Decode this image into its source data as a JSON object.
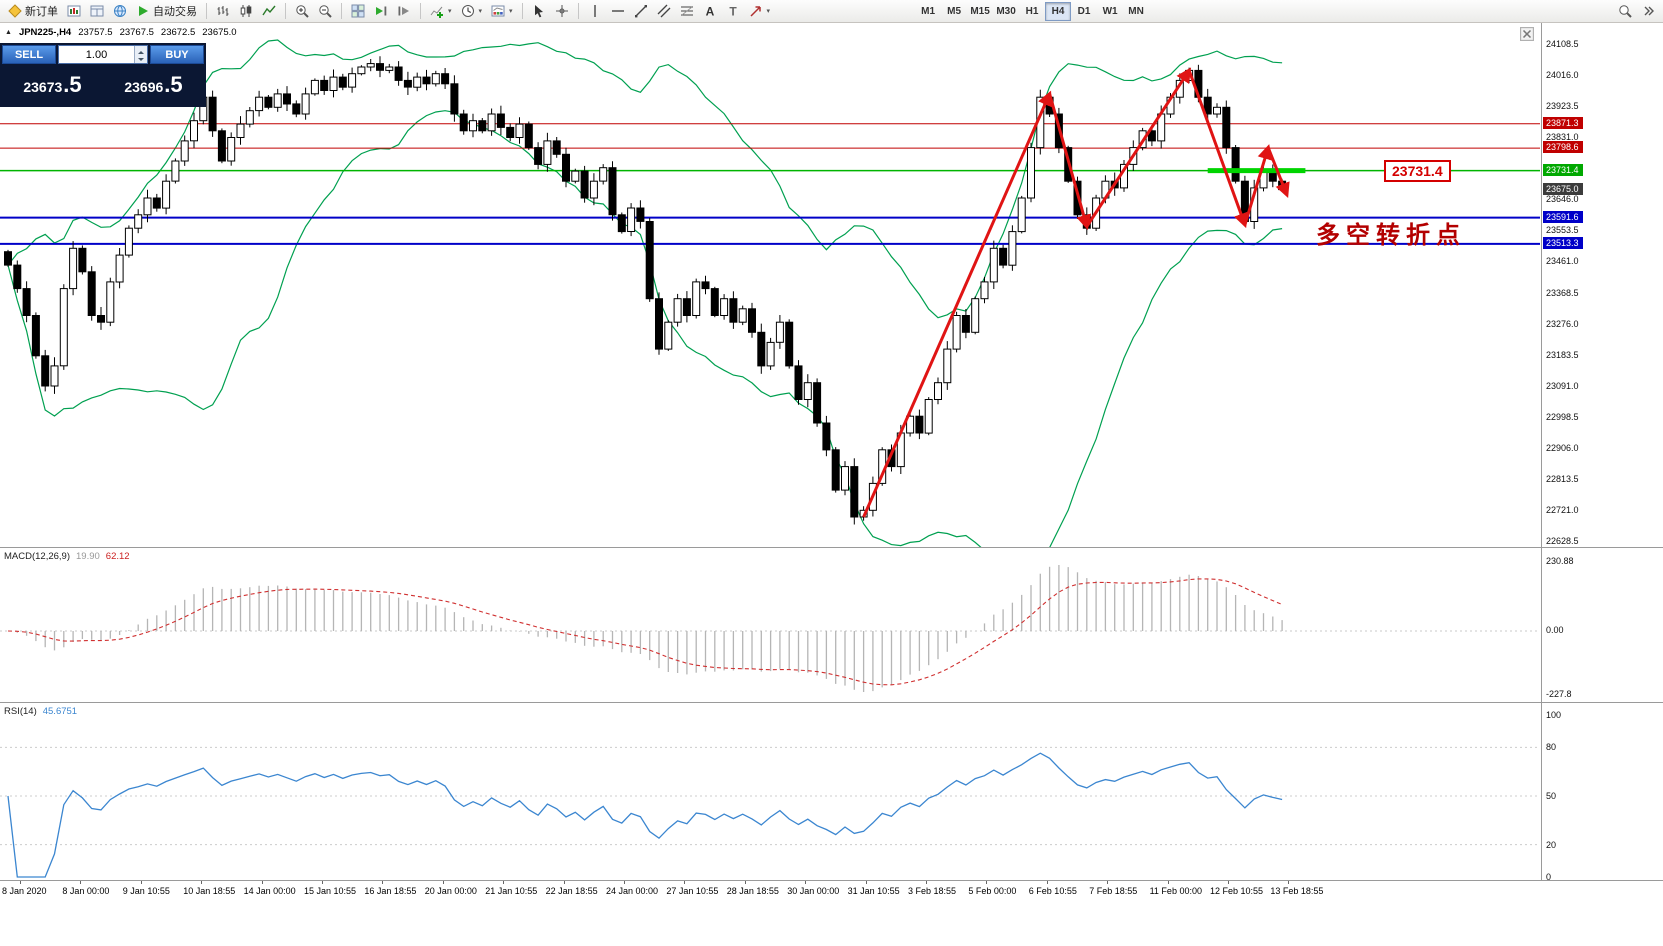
{
  "toolbar": {
    "new_order_label": "新订单",
    "auto_trading_label": "自动交易",
    "timeframes": [
      "M1",
      "M5",
      "M15",
      "M30",
      "H1",
      "H4",
      "D1",
      "W1",
      "MN"
    ],
    "active_timeframe": "H4"
  },
  "chart_header": {
    "symbol_period": "JPN225-,H4",
    "open": "23757.5",
    "high": "23767.5",
    "low": "23672.5",
    "close": "23675.0"
  },
  "trade_panel": {
    "sell_label": "SELL",
    "buy_label": "BUY",
    "volume": "1.00",
    "sell_price_main": "23673",
    "sell_price_frac": ".5",
    "buy_price_main": "23696",
    "buy_price_frac": ".5"
  },
  "price_axis": {
    "regular": [
      "24108.5",
      "24016.0",
      "23923.5",
      "23831.0",
      "23646.0",
      "23553.5",
      "23461.0",
      "23368.5",
      "23276.0",
      "23183.5",
      "23091.0",
      "22998.5",
      "22906.0",
      "22813.5",
      "22721.0",
      "22628.5"
    ],
    "special": [
      {
        "text": "23871.3",
        "price": 23871.3,
        "bg": "#c00000"
      },
      {
        "text": "23798.6",
        "price": 23798.6,
        "bg": "#c00000"
      },
      {
        "text": "23731.4",
        "price": 23731.4,
        "bg": "#00a800"
      },
      {
        "text": "23675.0",
        "price": 23675.0,
        "bg": "#3c3c3c"
      },
      {
        "text": "23591.6",
        "price": 23591.6,
        "bg": "#0000c8"
      },
      {
        "text": "23513.3",
        "price": 23513.3,
        "bg": "#0000c8"
      }
    ]
  },
  "annotations": {
    "price_tag": "23731.4",
    "turning_point_text": "多空转折点",
    "accent_red": "#d40000",
    "accent_green": "#00d400",
    "line_blue": "#0000c8"
  },
  "indicators": {
    "macd": {
      "label": "MACD(12,26,9)",
      "main_value": "19.90",
      "signal_value": "62.12",
      "axis": [
        "230.88",
        "0.00",
        "-227.8"
      ]
    },
    "rsi": {
      "label": "RSI(14)",
      "value": "45.6751",
      "axis": [
        "100",
        "80",
        "50",
        "20",
        "0"
      ]
    }
  },
  "time_axis": [
    "8 Jan 2020",
    "8 Jan 00:00",
    "9 Jan 10:55",
    "10 Jan 18:55",
    "14 Jan 00:00",
    "15 Jan 10:55",
    "16 Jan 18:55",
    "20 Jan 00:00",
    "21 Jan 10:55",
    "22 Jan 18:55",
    "24 Jan 00:00",
    "27 Jan 10:55",
    "28 Jan 18:55",
    "30 Jan 00:00",
    "31 Jan 10:55",
    "3 Feb 18:55",
    "5 Feb 00:00",
    "6 Feb 10:55",
    "7 Feb 18:55",
    "11 Feb 00:00",
    "12 Feb 10:55",
    "13 Feb 18:55"
  ],
  "icons": {
    "new-order-icon": "gold-diamond",
    "market-watch-icon": "mini-bar-chart",
    "data-window-icon": "window-grid",
    "navigator-icon": "globe",
    "auto-trading-icon": "green-play-triangle",
    "bars-chart-icon": "ohlc-bars",
    "candlestick-chart-icon": "candles",
    "line-chart-icon": "zigzag-line",
    "zoom-in-icon": "magnifier-plus",
    "zoom-out-icon": "magnifier-minus",
    "tile-windows-icon": "window-tiles",
    "auto-scroll-icon": "play-to-end",
    "chart-shift-icon": "shift-right",
    "indicators-icon": "green-plus-chart",
    "periods-icon": "clock",
    "templates-icon": "chart-palette",
    "cursor-icon": "pointer-arrow",
    "crosshair-icon": "crosshair",
    "vertical-line-icon": "vertical-line",
    "horizontal-line-icon": "horizontal-line",
    "trendline-icon": "diagonal-line",
    "channel-icon": "parallel-lines",
    "fibonacci-icon": "fibo-lines",
    "text-icon": "letter-A",
    "label-icon": "letter-T",
    "arrows-icon": "arrow-glyph",
    "search-icon": "magnifier",
    "chart-close-icon": "window-close"
  },
  "chart_data": {
    "type": "candlestick",
    "symbol": "JPN225-",
    "timeframe": "H4",
    "ylim": [
      22628.5,
      24108.5
    ],
    "closes": [
      23450,
      23380,
      23300,
      23180,
      23090,
      23150,
      23380,
      23500,
      23430,
      23300,
      23280,
      23400,
      23480,
      23560,
      23600,
      23650,
      23620,
      23700,
      23760,
      23820,
      23880,
      23950,
      23850,
      23760,
      23830,
      23870,
      23910,
      23950,
      23920,
      23960,
      23930,
      23900,
      23960,
      24000,
      23970,
      24010,
      23980,
      24020,
      24040,
      24050,
      24030,
      24040,
      24000,
      23980,
      24010,
      23990,
      24020,
      23990,
      23900,
      23850,
      23880,
      23850,
      23900,
      23860,
      23830,
      23870,
      23800,
      23750,
      23820,
      23780,
      23700,
      23730,
      23650,
      23700,
      23740,
      23600,
      23550,
      23620,
      23580,
      23350,
      23200,
      23280,
      23350,
      23300,
      23400,
      23380,
      23300,
      23350,
      23280,
      23320,
      23250,
      23150,
      23220,
      23280,
      23150,
      23050,
      23100,
      22980,
      22900,
      22780,
      22850,
      22700,
      22720,
      22800,
      22900,
      22850,
      22950,
      23000,
      22950,
      23050,
      23100,
      23200,
      23300,
      23250,
      23350,
      23400,
      23500,
      23450,
      23550,
      23650,
      23800,
      23950,
      23900,
      23800,
      23700,
      23600,
      23560,
      23650,
      23700,
      23680,
      23750,
      23800,
      23850,
      23820,
      23900,
      23950,
      24000,
      24030,
      23950,
      23900,
      23920,
      23800,
      23700,
      23580,
      23680,
      23730,
      23700,
      23675
    ],
    "hlines": [
      {
        "price": 23871.3,
        "color": "#c00000",
        "width": 1
      },
      {
        "price": 23798.6,
        "color": "#c00000",
        "width": 1
      },
      {
        "price": 23731.4,
        "color": "#00b400",
        "width": 1.5
      },
      {
        "price": 23591.6,
        "color": "#0000c8",
        "width": 2
      },
      {
        "price": 23513.3,
        "color": "#0000c8",
        "width": 2
      }
    ],
    "zigzag": [
      [
        92,
        22700
      ],
      [
        112,
        23960
      ],
      [
        116,
        23565
      ],
      [
        127,
        24030
      ],
      [
        133,
        23570
      ],
      [
        135.5,
        23800
      ],
      [
        137.5,
        23660
      ]
    ],
    "green_segment": {
      "price": 23731.4,
      "from": 129,
      "to": 139.5
    },
    "bollinger": {
      "period": 20,
      "deviation": 2
    },
    "macd_params": [
      12,
      26,
      9
    ],
    "rsi_period": 14
  }
}
